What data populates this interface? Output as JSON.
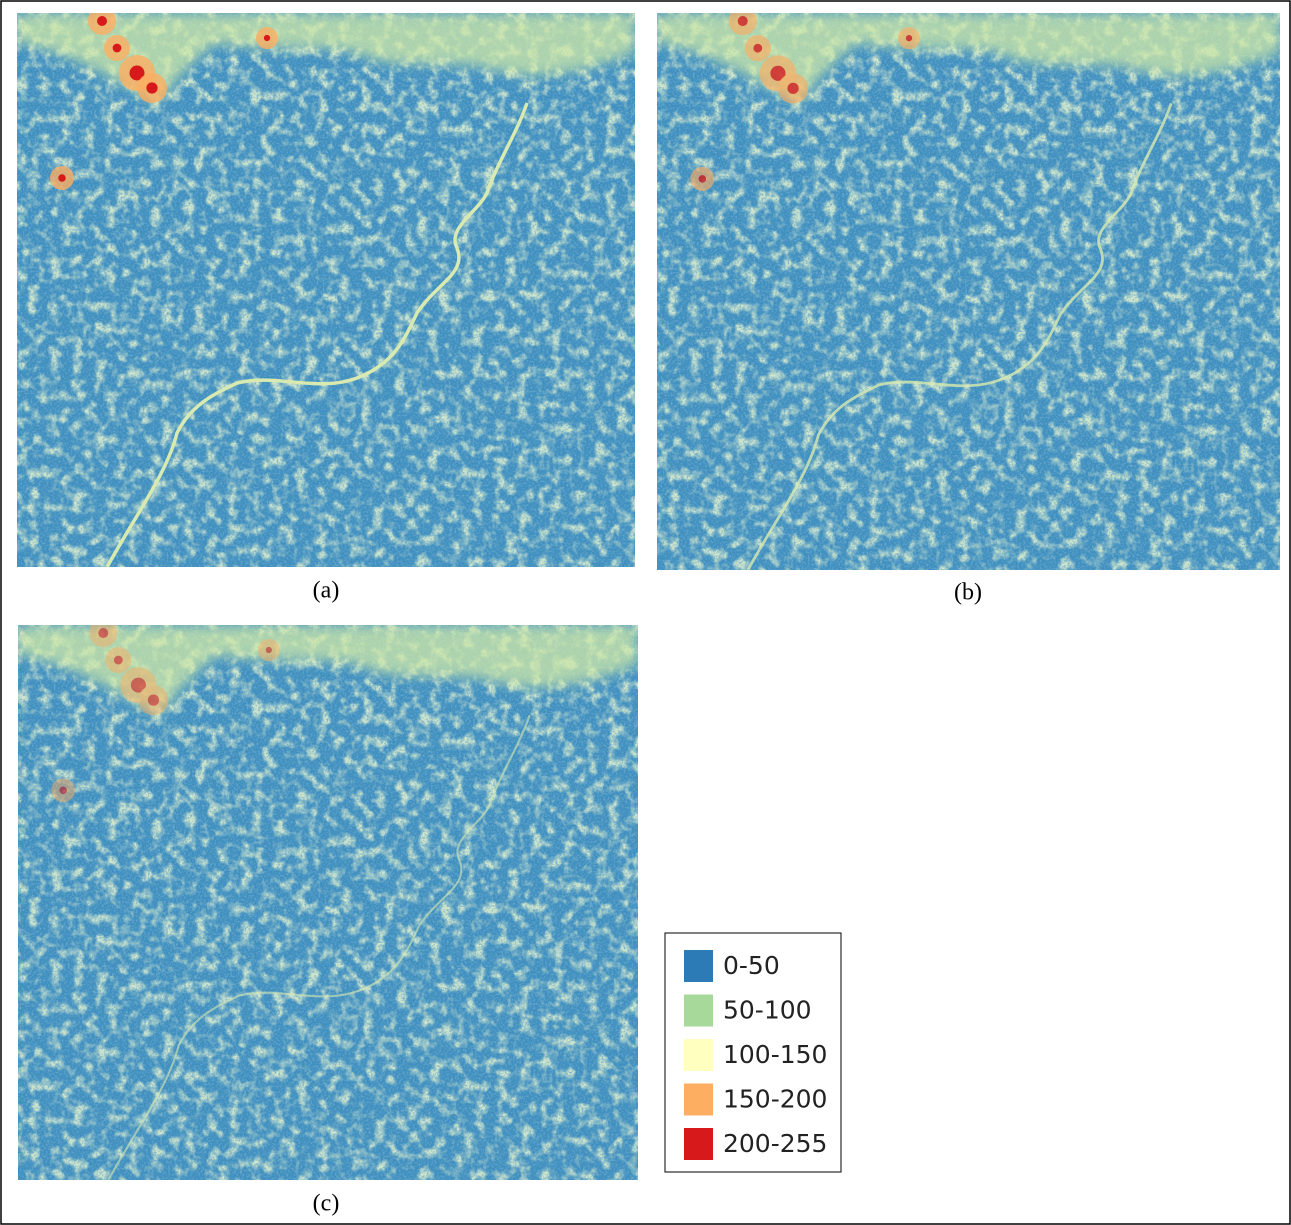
{
  "panels": [
    {
      "caption": "(a)"
    },
    {
      "caption": "(b)"
    },
    {
      "caption": "(c)"
    }
  ],
  "legend": {
    "items": [
      {
        "label": "0-50",
        "color": "#2c7bb6"
      },
      {
        "label": "50-100",
        "color": "#a6d99a"
      },
      {
        "label": "100-150",
        "color": "#ffffbf"
      },
      {
        "label": "150-200",
        "color": "#fdae61"
      },
      {
        "label": "200-255",
        "color": "#d7191c"
      }
    ]
  }
}
